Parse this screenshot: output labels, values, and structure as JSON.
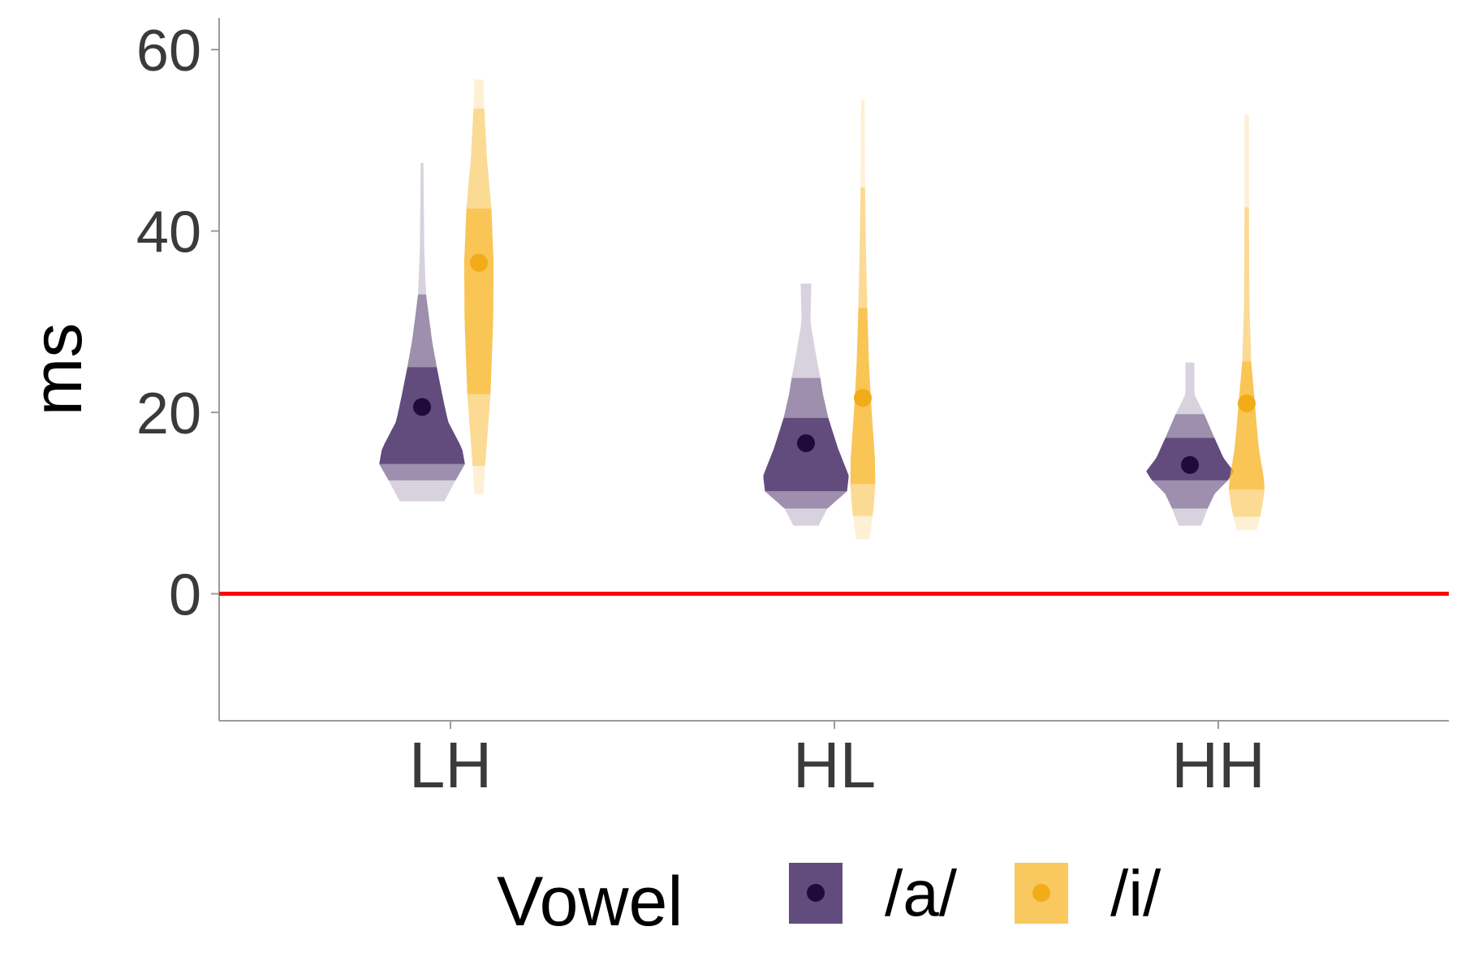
{
  "chart_data": {
    "type": "violin",
    "title": "",
    "xlabel": "",
    "ylabel": "ms",
    "ylim": [
      -14,
      63.5
    ],
    "yticks": [
      0,
      20,
      40,
      60
    ],
    "reference_line": {
      "y": 0,
      "color": "#ff0000"
    },
    "categories": [
      "LH",
      "HL",
      "HH"
    ],
    "legend": {
      "title": "Vowel",
      "position": "bottom",
      "entries": [
        {
          "label": "/a/",
          "color": "#3b1f5c",
          "point_color": "#1e0a3c"
        },
        {
          "label": "/i/",
          "color": "#f7b62a",
          "point_color": "#f2ac18"
        }
      ]
    },
    "series": [
      {
        "name": "/a/",
        "color": "#3b1f5c",
        "point_color": "#1e0a3c",
        "groups": [
          {
            "category": "LH",
            "min": 10.2,
            "max": 47.5,
            "point": 20.6,
            "bands": [
              10.2,
              12.5,
              14.3,
              25.0,
              33.0,
              47.5
            ],
            "profile": [
              [
                10.2,
                0.5
              ],
              [
                12.5,
                0.75
              ],
              [
                14.3,
                0.96
              ],
              [
                16,
                0.9
              ],
              [
                19,
                0.58
              ],
              [
                22,
                0.45
              ],
              [
                25,
                0.33
              ],
              [
                28,
                0.22
              ],
              [
                33,
                0.09
              ],
              [
                38,
                0.05
              ],
              [
                47.5,
                0.03
              ]
            ]
          },
          {
            "category": "HL",
            "min": 7.5,
            "max": 34.2,
            "point": 16.6,
            "bands": [
              7.5,
              9.4,
              11.3,
              19.4,
              23.8,
              34.2
            ],
            "profile": [
              [
                7.5,
                0.28
              ],
              [
                9.4,
                0.48
              ],
              [
                11.3,
                0.92
              ],
              [
                13,
                0.96
              ],
              [
                16,
                0.72
              ],
              [
                19.4,
                0.5
              ],
              [
                22,
                0.38
              ],
              [
                23.8,
                0.32
              ],
              [
                27,
                0.2
              ],
              [
                30,
                0.1
              ],
              [
                34.2,
                0.12
              ]
            ]
          },
          {
            "category": "HH",
            "min": 7.5,
            "max": 25.5,
            "point": 14.2,
            "bands": [
              7.5,
              9.4,
              12.5,
              17.2,
              19.8,
              25.5
            ],
            "profile": [
              [
                7.5,
                0.25
              ],
              [
                9.4,
                0.4
              ],
              [
                11,
                0.55
              ],
              [
                12.5,
                0.85
              ],
              [
                13.5,
                0.98
              ],
              [
                15,
                0.75
              ],
              [
                17.2,
                0.55
              ],
              [
                19.8,
                0.32
              ],
              [
                22,
                0.1
              ],
              [
                25.5,
                0.1
              ]
            ]
          }
        ]
      },
      {
        "name": "/i/",
        "color": "#f7b62a",
        "point_color": "#f2ac18",
        "groups": [
          {
            "category": "LH",
            "min": 11.0,
            "max": 56.7,
            "point": 36.5,
            "bands": [
              11.0,
              14.1,
              22.0,
              42.5,
              53.5,
              56.7
            ],
            "profile": [
              [
                11,
                0.1
              ],
              [
                14.1,
                0.14
              ],
              [
                18,
                0.2
              ],
              [
                22,
                0.26
              ],
              [
                30,
                0.32
              ],
              [
                36.5,
                0.33
              ],
              [
                42.5,
                0.28
              ],
              [
                48,
                0.18
              ],
              [
                53.5,
                0.12
              ],
              [
                56.7,
                0.1
              ]
            ]
          },
          {
            "category": "HL",
            "min": 6.0,
            "max": 54.5,
            "point": 21.6,
            "bands": [
              6.0,
              8.6,
              12.1,
              31.5,
              44.8,
              54.5
            ],
            "profile": [
              [
                6,
                0.15
              ],
              [
                8.6,
                0.22
              ],
              [
                10,
                0.25
              ],
              [
                12.1,
                0.28
              ],
              [
                15,
                0.27
              ],
              [
                20,
                0.2
              ],
              [
                25,
                0.14
              ],
              [
                31.5,
                0.1
              ],
              [
                38,
                0.07
              ],
              [
                44.8,
                0.05
              ],
              [
                54.5,
                0.04
              ]
            ]
          },
          {
            "category": "HH",
            "min": 7.0,
            "max": 52.8,
            "point": 21.0,
            "bands": [
              7.0,
              8.5,
              11.5,
              25.6,
              42.6,
              52.8
            ],
            "profile": [
              [
                7,
                0.22
              ],
              [
                8.5,
                0.3
              ],
              [
                10,
                0.36
              ],
              [
                11.5,
                0.4
              ],
              [
                13,
                0.38
              ],
              [
                15,
                0.3
              ],
              [
                17,
                0.25
              ],
              [
                20,
                0.2
              ],
              [
                25.6,
                0.1
              ],
              [
                32,
                0.06
              ],
              [
                42.6,
                0.05
              ],
              [
                52.8,
                0.05
              ]
            ]
          }
        ]
      }
    ]
  }
}
